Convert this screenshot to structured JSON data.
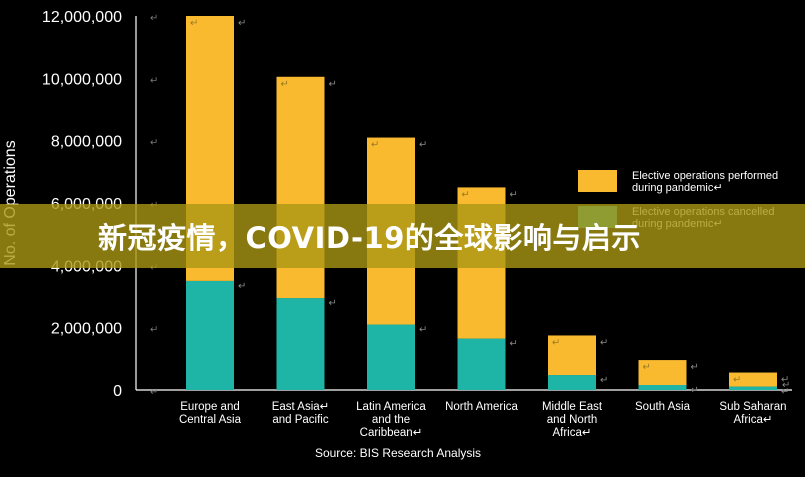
{
  "banner": {
    "title": "新冠疫情，COVID-19的全球影响与启示"
  },
  "chart_data": {
    "type": "bar",
    "stacked": true,
    "categories": [
      [
        "Europe and",
        "Central Asia"
      ],
      [
        "East Asia↵",
        "and Pacific"
      ],
      [
        "Latin America",
        "and the",
        "Caribbean↵"
      ],
      [
        "North America"
      ],
      [
        "Middle East",
        "and North",
        "Africa↵"
      ],
      [
        "South Asia"
      ],
      [
        "Sub Saharan",
        "Africa↵"
      ]
    ],
    "series": [
      {
        "name": "Elective operations cancelled during pandemic↵",
        "color": "#1fb5a6",
        "values": [
          3500000,
          2950000,
          2100000,
          1650000,
          480000,
          160000,
          110000
        ]
      },
      {
        "name": "Elective operations performed during pandemic↵",
        "color": "#f9ba30",
        "values": [
          8500000,
          7100000,
          6000000,
          4850000,
          1270000,
          800000,
          450000
        ]
      }
    ],
    "ylabel": "No. of Operations",
    "ylim": [
      0,
      12000000
    ],
    "yticks": [
      0,
      2000000,
      4000000,
      6000000,
      8000000,
      10000000,
      12000000
    ],
    "ytick_labels": [
      "0",
      "2,000,000",
      "4,000,000",
      "6,000,000",
      "8,000,000",
      "10,000,000",
      "12,000,000"
    ],
    "source": "Source: BIS Research Analysis",
    "legend_position": "right",
    "grid": false,
    "marker": "↵"
  }
}
